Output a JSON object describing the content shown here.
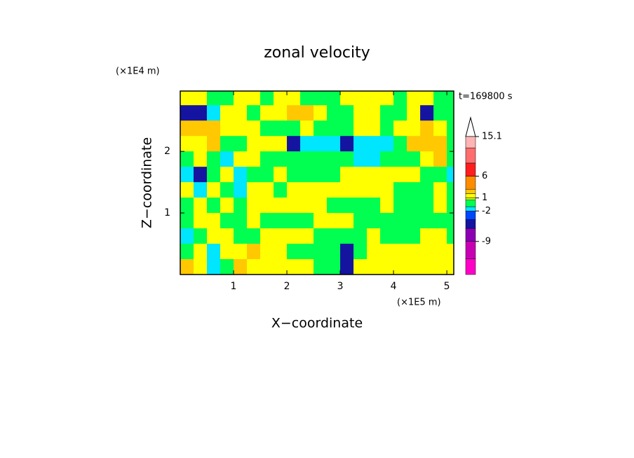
{
  "chart_data": {
    "type": "contour",
    "title": "zonal velocity",
    "x_label": "X−coordinate",
    "y_label": "Z−coordinate",
    "x_unit": "(×1E5 m)",
    "y_unit": "(×1E4 m)",
    "annotation": "t=169800 s",
    "xlim": [
      0,
      5.13
    ],
    "ylim": [
      0,
      2.98
    ],
    "xticks": [
      1,
      2,
      3,
      4,
      5
    ],
    "yticks": [
      1,
      2
    ],
    "x": [
      0.125,
      0.375,
      0.625,
      0.875,
      1.125,
      1.375,
      1.625,
      1.875,
      2.125,
      2.375,
      2.625,
      2.875,
      3.125,
      3.375,
      3.625,
      3.875,
      4.125,
      4.375,
      4.625,
      4.875,
      5.125
    ],
    "y": [
      2.875,
      2.625,
      2.375,
      2.125,
      1.875,
      1.625,
      1.375,
      1.125,
      0.875,
      0.625,
      0.375,
      0.125
    ],
    "z": [
      [
        1.5,
        1.5,
        -0.3,
        -0.3,
        1.5,
        1.5,
        -0.3,
        1.5,
        1.5,
        -0.3,
        -0.3,
        -0.3,
        1.5,
        1.5,
        1.5,
        1.5,
        -0.3,
        1.5,
        1.5,
        -0.3,
        -0.3
      ],
      [
        -5,
        -5,
        -1.5,
        1.5,
        1.5,
        -0.3,
        1.5,
        1.5,
        2.5,
        2.5,
        1.5,
        -0.3,
        -0.3,
        1.5,
        1.5,
        -0.3,
        -0.3,
        1.5,
        -5,
        -0.3,
        -0.3
      ],
      [
        2.5,
        2.5,
        2.5,
        1.5,
        1.5,
        1.5,
        -0.3,
        -0.3,
        -0.3,
        1.5,
        -0.3,
        -0.3,
        -0.3,
        1.5,
        1.5,
        -0.3,
        1.5,
        1.5,
        2.5,
        1.5,
        -0.3
      ],
      [
        1.5,
        1.5,
        2.5,
        -0.3,
        -0.3,
        1.5,
        1.5,
        1.5,
        -5,
        -1.5,
        -1.5,
        -1.5,
        -5,
        -1.5,
        -1.5,
        -1.5,
        -0.3,
        2.5,
        2.5,
        2.5,
        -0.3
      ],
      [
        -0.3,
        1.5,
        -0.3,
        -1.5,
        1.5,
        1.5,
        -0.3,
        -0.3,
        -0.3,
        -0.3,
        -0.3,
        -0.3,
        -0.3,
        -1.5,
        -1.5,
        -0.3,
        -0.3,
        -0.3,
        1.5,
        2.5,
        -0.3
      ],
      [
        -1.5,
        -5,
        -0.3,
        1.5,
        -1.5,
        -0.3,
        -0.3,
        1.5,
        -0.3,
        -0.3,
        -0.3,
        -0.3,
        1.5,
        1.5,
        1.5,
        1.5,
        1.5,
        1.5,
        -0.3,
        -0.3,
        -1.5
      ],
      [
        1.5,
        -1.5,
        1.5,
        -0.3,
        -1.5,
        1.5,
        1.5,
        -0.3,
        1.5,
        1.5,
        1.5,
        1.5,
        1.5,
        1.5,
        1.5,
        1.5,
        -0.3,
        -0.3,
        -0.3,
        1.5,
        -0.3
      ],
      [
        -0.3,
        1.5,
        -0.3,
        1.5,
        -0.3,
        1.5,
        1.5,
        1.5,
        1.5,
        1.5,
        1.5,
        -0.3,
        -0.3,
        -0.3,
        -0.3,
        1.5,
        -0.3,
        -0.3,
        -0.3,
        1.5,
        -0.3
      ],
      [
        -0.3,
        1.5,
        1.5,
        -0.3,
        -0.3,
        1.5,
        -0.3,
        -0.3,
        -0.3,
        -0.3,
        1.5,
        1.5,
        1.5,
        -0.3,
        -0.3,
        -0.3,
        -0.3,
        -0.3,
        -0.3,
        -0.3,
        -0.3
      ],
      [
        -1.5,
        -0.3,
        1.5,
        1.5,
        -0.3,
        -0.3,
        1.5,
        1.5,
        1.5,
        1.5,
        -0.3,
        -0.3,
        -0.3,
        -0.3,
        1.5,
        -0.3,
        -0.3,
        -0.3,
        1.5,
        1.5,
        -0.3
      ],
      [
        -0.3,
        1.5,
        -1.5,
        1.5,
        1.5,
        2.5,
        1.5,
        1.5,
        -0.3,
        -0.3,
        -0.3,
        -0.3,
        -5,
        -0.3,
        1.5,
        1.5,
        1.5,
        1.5,
        1.5,
        1.5,
        1.5
      ],
      [
        2.5,
        1.5,
        -1.5,
        -0.3,
        2.5,
        1.5,
        1.5,
        1.5,
        1.5,
        1.5,
        -0.3,
        -0.3,
        -5,
        1.5,
        1.5,
        1.5,
        1.5,
        1.5,
        1.5,
        1.5,
        1.5
      ]
    ],
    "colorbar": {
      "levels": [
        -16.6,
        -13,
        -9,
        -6,
        -4,
        -2,
        -1,
        0.5,
        1,
        2,
        3,
        6,
        9,
        12.5,
        15.1
      ],
      "colors": [
        "#ff00c8",
        "#c800b4",
        "#8c00b4",
        "#1414a0",
        "#0046ff",
        "#00e6ff",
        "#00ff50",
        "#b4ff28",
        "#ffff00",
        "#ffc800",
        "#ff8c00",
        "#ff1e1e",
        "#ff6e6e",
        "#ffb4b4"
      ],
      "ticks": [
        15.1,
        6,
        1,
        -2,
        -9
      ]
    }
  }
}
